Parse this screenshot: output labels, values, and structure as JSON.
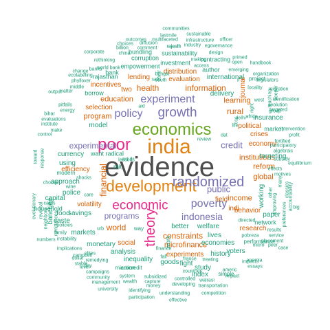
{
  "colors": {
    "gray": "#4d4d4d",
    "orange": "#e08214",
    "purple": "#7570b3",
    "teal": "#1b9e77",
    "magenta": "#e7298a",
    "green": "#66a61e",
    "brown": "#d95f02"
  },
  "words": [
    {
      "text": "evidence",
      "color": "gray"
    },
    {
      "text": "development",
      "color": "orange"
    },
    {
      "text": "india",
      "color": "orange"
    },
    {
      "text": "economics",
      "color": "green"
    },
    {
      "text": "randomized",
      "color": "purple"
    },
    {
      "text": "economic",
      "color": "magenta"
    },
    {
      "text": "poor",
      "color": "magenta"
    },
    {
      "text": "theory",
      "color": "magenta"
    },
    {
      "text": "growth",
      "color": "purple"
    },
    {
      "text": "policy",
      "color": "purple"
    },
    {
      "text": "experiment",
      "color": "purple"
    },
    {
      "text": "poverty",
      "color": "purple"
    },
    {
      "text": "indonesia",
      "color": "purple"
    },
    {
      "text": "experimental",
      "color": "purple"
    },
    {
      "text": "information",
      "color": "brown"
    },
    {
      "text": "health",
      "color": "brown"
    },
    {
      "text": "credit",
      "color": "purple"
    },
    {
      "text": "public",
      "color": "purple"
    },
    {
      "text": "programs",
      "color": "purple"
    },
    {
      "text": "constraints",
      "color": "brown"
    },
    {
      "text": "microfinance",
      "color": "brown"
    },
    {
      "text": "world",
      "color": "brown"
    },
    {
      "text": "financial",
      "color": "brown"
    },
    {
      "text": "rural",
      "color": "brown"
    },
    {
      "text": "education",
      "color": "brown"
    },
    {
      "text": "program",
      "color": "brown"
    },
    {
      "text": "learning",
      "color": "brown"
    },
    {
      "text": "global",
      "color": "brown"
    },
    {
      "text": "institutions",
      "color": "brown"
    },
    {
      "text": "reform",
      "color": "brown"
    },
    {
      "text": "income",
      "color": "brown"
    },
    {
      "text": "experiments",
      "color": "brown"
    },
    {
      "text": "lending",
      "color": "brown"
    },
    {
      "text": "distribution",
      "color": "brown"
    },
    {
      "text": "evaluation",
      "color": "brown"
    },
    {
      "text": "incentives",
      "color": "brown"
    },
    {
      "text": "selection",
      "color": "brown"
    },
    {
      "text": "volatility",
      "color": "brown"
    },
    {
      "text": "behavior",
      "color": "brown"
    },
    {
      "text": "research",
      "color": "brown"
    },
    {
      "text": "social",
      "color": "brown"
    },
    {
      "text": "crises",
      "color": "brown"
    },
    {
      "text": "political",
      "color": "brown"
    },
    {
      "text": "economy",
      "color": "brown"
    },
    {
      "text": "efficiency",
      "color": "brown"
    },
    {
      "text": "journal",
      "color": "brown"
    },
    {
      "text": "field",
      "color": "brown"
    },
    {
      "text": "indi",
      "color": "brown"
    },
    {
      "text": "two",
      "color": "brown"
    },
    {
      "text": "model",
      "color": "teal"
    },
    {
      "text": "want radical",
      "color": "teal"
    },
    {
      "text": "currency",
      "color": "teal"
    },
    {
      "text": "approach",
      "color": "teal"
    },
    {
      "text": "using",
      "color": "teal"
    },
    {
      "text": "mit",
      "color": "teal"
    },
    {
      "text": "work",
      "color": "teal"
    },
    {
      "text": "inequality",
      "color": "teal"
    },
    {
      "text": "analysis",
      "color": "teal"
    },
    {
      "text": "monetary",
      "color": "teal"
    },
    {
      "text": "markets",
      "color": "teal"
    },
    {
      "text": "savings",
      "color": "teal"
    },
    {
      "text": "food",
      "color": "teal"
    },
    {
      "text": "caste",
      "color": "teal"
    },
    {
      "text": "police",
      "color": "teal"
    },
    {
      "text": "banerjee",
      "color": "teal"
    },
    {
      "text": "capital",
      "color": "teal"
    },
    {
      "text": "household",
      "color": "teal"
    },
    {
      "text": "better",
      "color": "teal"
    },
    {
      "text": "welfare",
      "color": "teal"
    },
    {
      "text": "lives",
      "color": "teal"
    },
    {
      "text": "economies",
      "color": "teal"
    },
    {
      "text": "history",
      "color": "teal"
    },
    {
      "text": "voters",
      "color": "teal"
    },
    {
      "text": "goods",
      "color": "teal"
    },
    {
      "text": "fight",
      "color": "teal"
    },
    {
      "text": "study",
      "color": "teal"
    },
    {
      "text": "index",
      "color": "teal"
    },
    {
      "text": "international",
      "color": "teal"
    },
    {
      "text": "delivery",
      "color": "teal"
    },
    {
      "text": "author",
      "color": "teal"
    },
    {
      "text": "targeting",
      "color": "teal"
    },
    {
      "text": "insurance",
      "color": "teal"
    },
    {
      "text": "market",
      "color": "teal"
    },
    {
      "text": "working",
      "color": "teal"
    },
    {
      "text": "paper",
      "color": "teal"
    },
    {
      "text": "network",
      "color": "teal"
    },
    {
      "text": "performance",
      "color": "teal"
    },
    {
      "text": "project",
      "color": "teal"
    },
    {
      "text": "investment",
      "color": "teal"
    },
    {
      "text": "sustainability",
      "color": "teal"
    },
    {
      "text": "contracting",
      "color": "teal"
    },
    {
      "text": "empowerment",
      "color": "teal"
    },
    {
      "text": "corruption",
      "color": "teal"
    },
    {
      "text": "rajasthan",
      "color": "teal"
    },
    {
      "text": "bundling",
      "color": "teal"
    },
    {
      "text": "borrow",
      "color": "teal"
    },
    {
      "text": "bank",
      "color": "teal"
    },
    {
      "text": "communities",
      "color": "teal"
    },
    {
      "text": "sustainable",
      "color": "teal"
    },
    {
      "text": "lastmile",
      "color": "teal"
    },
    {
      "text": "outcomes",
      "color": "teal"
    },
    {
      "text": "multifaceted",
      "color": "teal"
    },
    {
      "text": "infrastructure",
      "color": "teal"
    },
    {
      "text": "officer",
      "color": "teal"
    },
    {
      "text": "rajasth",
      "color": "teal"
    },
    {
      "text": "industry",
      "color": "teal"
    },
    {
      "text": "egovernance",
      "color": "teal"
    },
    {
      "text": "design",
      "color": "teal"
    },
    {
      "text": "primed",
      "color": "teal"
    },
    {
      "text": "making",
      "color": "teal"
    },
    {
      "text": "access",
      "color": "teal"
    },
    {
      "text": "emerging",
      "color": "teal"
    },
    {
      "text": "organization",
      "color": "teal"
    },
    {
      "text": "legislators",
      "color": "teal"
    },
    {
      "text": "migration",
      "color": "teal"
    },
    {
      "text": "identification",
      "color": "teal"
    },
    {
      "text": "evolution",
      "color": "teal"
    },
    {
      "text": "targeted",
      "color": "teal"
    },
    {
      "text": "intervention",
      "color": "teal"
    },
    {
      "text": "profit",
      "color": "teal"
    },
    {
      "text": "participatory",
      "color": "teal"
    },
    {
      "text": "algebraic",
      "color": "teal"
    },
    {
      "text": "subsidy",
      "color": "teal"
    },
    {
      "text": "equilibrium",
      "color": "teal"
    },
    {
      "text": "motives",
      "color": "teal"
    },
    {
      "text": "accountability",
      "color": "teal"
    },
    {
      "text": "transportation",
      "color": "teal"
    },
    {
      "text": "competition",
      "color": "teal"
    },
    {
      "text": "understanding",
      "color": "teal"
    },
    {
      "text": "effective",
      "color": "teal"
    },
    {
      "text": "participation",
      "color": "teal"
    },
    {
      "text": "identifying",
      "color": "teal"
    },
    {
      "text": "university",
      "color": "teal"
    },
    {
      "text": "management",
      "color": "teal"
    },
    {
      "text": "community",
      "color": "teal"
    },
    {
      "text": "campaigns",
      "color": "teal"
    },
    {
      "text": "campbell",
      "color": "teal"
    },
    {
      "text": "implications",
      "color": "teal"
    },
    {
      "text": "family",
      "color": "teal"
    },
    {
      "text": "policies",
      "color": "teal"
    },
    {
      "text": "instability",
      "color": "teal"
    },
    {
      "text": "numbers",
      "color": "teal"
    },
    {
      "text": "microcredit",
      "color": "teal"
    },
    {
      "text": "subsidized",
      "color": "teal"
    },
    {
      "text": "developing",
      "color": "teal"
    },
    {
      "text": "capture",
      "color": "teal"
    },
    {
      "text": "money",
      "color": "teal"
    },
    {
      "text": "controlled",
      "color": "teal"
    },
    {
      "text": "walrasi",
      "color": "teal"
    },
    {
      "text": "impacts",
      "color": "teal"
    },
    {
      "text": "anemia",
      "color": "teal"
    },
    {
      "text": "essays",
      "color": "teal"
    },
    {
      "text": "placement",
      "color": "teal"
    },
    {
      "text": "service",
      "color": "teal"
    },
    {
      "text": "results",
      "color": "teal"
    },
    {
      "text": "directed",
      "color": "teal"
    },
    {
      "text": "pobreza",
      "color": "teal"
    },
    {
      "text": "remedying",
      "color": "teal"
    },
    {
      "text": "stable",
      "color": "teal"
    },
    {
      "text": "dollar",
      "color": "teal"
    },
    {
      "text": "elites",
      "color": "teal"
    },
    {
      "text": "finance",
      "color": "teal"
    },
    {
      "text": "countries",
      "color": "teal"
    },
    {
      "text": "simple",
      "color": "teal"
    },
    {
      "text": "americ",
      "color": "teal"
    },
    {
      "text": "impact",
      "color": "teal"
    },
    {
      "text": "france",
      "color": "teal"
    },
    {
      "text": "treating",
      "color": "teal"
    },
    {
      "text": "action",
      "color": "teal"
    },
    {
      "text": "system",
      "color": "teal"
    },
    {
      "text": "wealth",
      "color": "teal"
    },
    {
      "text": "fall",
      "color": "teal"
    },
    {
      "text": "micro",
      "color": "teal"
    },
    {
      "text": "peer",
      "color": "teal"
    },
    {
      "text": "case",
      "color": "teal"
    },
    {
      "text": "review",
      "color": "teal"
    },
    {
      "text": "dat",
      "color": "teal"
    },
    {
      "text": "life",
      "color": "teal"
    },
    {
      "text": "africa",
      "color": "teal"
    },
    {
      "text": "delhi",
      "color": "teal"
    },
    {
      "text": "right",
      "color": "teal"
    },
    {
      "text": "west",
      "color": "teal"
    },
    {
      "text": "locality",
      "color": "teal"
    },
    {
      "text": "open",
      "color": "teal"
    },
    {
      "text": "handbook",
      "color": "teal"
    },
    {
      "text": "group",
      "color": "teal"
    },
    {
      "text": "salt",
      "color": "teal"
    },
    {
      "text": "south",
      "color": "teal"
    },
    {
      "text": "bengal",
      "color": "teal"
    },
    {
      "text": "ccc",
      "color": "teal"
    },
    {
      "text": "lessons",
      "color": "teal"
    },
    {
      "text": "aid",
      "color": "teal"
    },
    {
      "text": "contr",
      "color": "teal"
    },
    {
      "text": "banks",
      "color": "teal"
    },
    {
      "text": "change",
      "color": "teal"
    },
    {
      "text": "rethinking",
      "color": "teal"
    },
    {
      "text": "corporate",
      "color": "teal"
    },
    {
      "text": "billion",
      "color": "teal"
    },
    {
      "text": "comment",
      "color": "teal"
    },
    {
      "text": "choices",
      "color": "teal"
    },
    {
      "text": "diffusion",
      "color": "teal"
    },
    {
      "text": "phylloxer",
      "color": "teal"
    },
    {
      "text": "middle",
      "color": "teal"
    },
    {
      "text": "matter",
      "color": "teal"
    },
    {
      "text": "ecolabeling",
      "color": "teal"
    },
    {
      "text": "output",
      "color": "teal"
    },
    {
      "text": "pitfalls",
      "color": "teal"
    },
    {
      "text": "energy",
      "color": "teal"
    },
    {
      "text": "bihar",
      "color": "teal"
    },
    {
      "text": "evaluations",
      "color": "teal"
    },
    {
      "text": "institute",
      "color": "teal"
    },
    {
      "text": "make",
      "color": "teal"
    },
    {
      "text": "control",
      "color": "teal"
    },
    {
      "text": "choose",
      "color": "teal"
    },
    {
      "text": "cards",
      "color": "teal"
    },
    {
      "text": "toward",
      "color": "teal"
    },
    {
      "text": "response",
      "color": "teal"
    },
    {
      "text": "remittances",
      "color": "teal"
    },
    {
      "text": "evolutionary",
      "color": "teal"
    },
    {
      "text": "reversal",
      "color": "teal"
    },
    {
      "text": "neighbors",
      "color": "teal"
    },
    {
      "text": "modern",
      "color": "teal"
    },
    {
      "text": "shocks",
      "color": "teal"
    },
    {
      "text": "wine",
      "color": "teal"
    },
    {
      "text": "care",
      "color": "teal"
    },
    {
      "text": "urb",
      "color": "teal"
    },
    {
      "text": "way",
      "color": "teal"
    },
    {
      "text": "level",
      "color": "teal"
    },
    {
      "text": "day",
      "color": "teal"
    },
    {
      "text": "big",
      "color": "teal"
    },
    {
      "text": "many",
      "color": "teal"
    },
    {
      "text": "improving",
      "color": "teal"
    },
    {
      "text": "preferences",
      "color": "teal"
    },
    {
      "text": "classics",
      "color": "teal"
    },
    {
      "text": "other",
      "color": "teal"
    },
    {
      "text": "keeper",
      "color": "teal"
    },
    {
      "text": "teaching",
      "color": "teal"
    },
    {
      "text": "fortified",
      "color": "teal"
    },
    {
      "text": "effects",
      "color": "teal"
    },
    {
      "text": "world bank",
      "color": "teal"
    },
    {
      "text": "rajesh",
      "color": "teal"
    },
    {
      "text": "china",
      "color": "teal"
    },
    {
      "text": "aid dr",
      "color": "teal"
    },
    {
      "text": "ir",
      "color": "teal"
    }
  ]
}
